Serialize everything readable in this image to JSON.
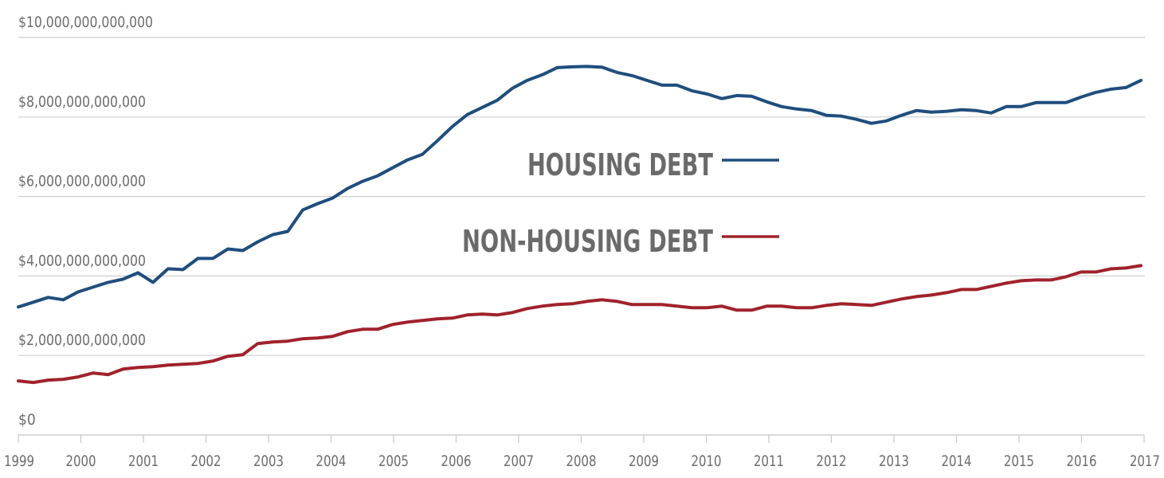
{
  "chart_data": {
    "type": "line",
    "title": "",
    "xlabel": "",
    "ylabel": "",
    "xlim": [
      1999,
      2017
    ],
    "ylim": [
      0,
      10000000000000
    ],
    "grid": true,
    "legend_position": "center",
    "y_ticks": [
      {
        "value": 0,
        "label": "$0"
      },
      {
        "value": 2000000000000,
        "label": "$2,000,000,000,000"
      },
      {
        "value": 4000000000000,
        "label": "$4,000,000,000,000"
      },
      {
        "value": 6000000000000,
        "label": "$6,000,000,000,000"
      },
      {
        "value": 8000000000000,
        "label": "$8,000,000,000,000"
      },
      {
        "value": 10000000000000,
        "label": "$10,000,000,000,000"
      }
    ],
    "x_ticks": [
      {
        "value": 1999,
        "label": "1999"
      },
      {
        "value": 2000,
        "label": "2000"
      },
      {
        "value": 2001,
        "label": "2001"
      },
      {
        "value": 2002,
        "label": "2002"
      },
      {
        "value": 2003,
        "label": "2003"
      },
      {
        "value": 2004,
        "label": "2004"
      },
      {
        "value": 2005,
        "label": "2005"
      },
      {
        "value": 2006,
        "label": "2006"
      },
      {
        "value": 2007,
        "label": "2007"
      },
      {
        "value": 2008,
        "label": "2008"
      },
      {
        "value": 2009,
        "label": "2009"
      },
      {
        "value": 2010,
        "label": "2010"
      },
      {
        "value": 2011,
        "label": "2011"
      },
      {
        "value": 2012,
        "label": "2012"
      },
      {
        "value": 2013,
        "label": "2013"
      },
      {
        "value": 2014,
        "label": "2014"
      },
      {
        "value": 2015,
        "label": "2015"
      },
      {
        "value": 2016,
        "label": "2016"
      },
      {
        "value": 2017,
        "label": "2017"
      }
    ],
    "value_unit": "trillions of dollars (series values)",
    "x_start": 1999,
    "x_step": 0.25,
    "series": [
      {
        "name": "HOUSING DEBT",
        "color": "#1f4e7d",
        "values": [
          3.22,
          3.34,
          3.46,
          3.4,
          3.6,
          3.72,
          3.84,
          3.92,
          4.08,
          3.84,
          4.18,
          4.16,
          4.44,
          4.44,
          4.68,
          4.64,
          4.86,
          5.04,
          5.12,
          5.66,
          5.82,
          5.96,
          6.2,
          6.38,
          6.52,
          6.72,
          6.92,
          7.06,
          7.4,
          7.76,
          8.06,
          8.24,
          8.42,
          8.72,
          8.92,
          9.06,
          9.24,
          9.26,
          9.27,
          9.25,
          9.12,
          9.04,
          8.92,
          8.8,
          8.8,
          8.66,
          8.58,
          8.46,
          8.54,
          8.52,
          8.38,
          8.26,
          8.2,
          8.16,
          8.04,
          8.02,
          7.94,
          7.84,
          7.9,
          8.04,
          8.16,
          8.12,
          8.14,
          8.18,
          8.16,
          8.1,
          8.26,
          8.26,
          8.36,
          8.36,
          8.36,
          8.5,
          8.62,
          8.7,
          8.74,
          8.92
        ]
      },
      {
        "name": "NON-HOUSING DEBT",
        "color": "#a0222c",
        "values": [
          1.36,
          1.32,
          1.38,
          1.4,
          1.46,
          1.56,
          1.52,
          1.66,
          1.7,
          1.72,
          1.76,
          1.78,
          1.8,
          1.86,
          1.98,
          2.02,
          2.3,
          2.34,
          2.36,
          2.42,
          2.44,
          2.48,
          2.6,
          2.66,
          2.66,
          2.78,
          2.84,
          2.88,
          2.92,
          2.94,
          3.02,
          3.04,
          3.02,
          3.08,
          3.18,
          3.24,
          3.28,
          3.3,
          3.36,
          3.4,
          3.36,
          3.28,
          3.28,
          3.28,
          3.24,
          3.2,
          3.2,
          3.24,
          3.14,
          3.14,
          3.24,
          3.24,
          3.2,
          3.2,
          3.26,
          3.3,
          3.28,
          3.26,
          3.34,
          3.42,
          3.48,
          3.52,
          3.58,
          3.66,
          3.66,
          3.74,
          3.82,
          3.88,
          3.9,
          3.9,
          3.98,
          4.1,
          4.1,
          4.18,
          4.2,
          4.26
        ]
      }
    ],
    "legend": [
      {
        "label": "HOUSING DEBT",
        "color": "#1f4e7d"
      },
      {
        "label": "NON-HOUSING DEBT",
        "color": "#a0222c"
      }
    ]
  }
}
